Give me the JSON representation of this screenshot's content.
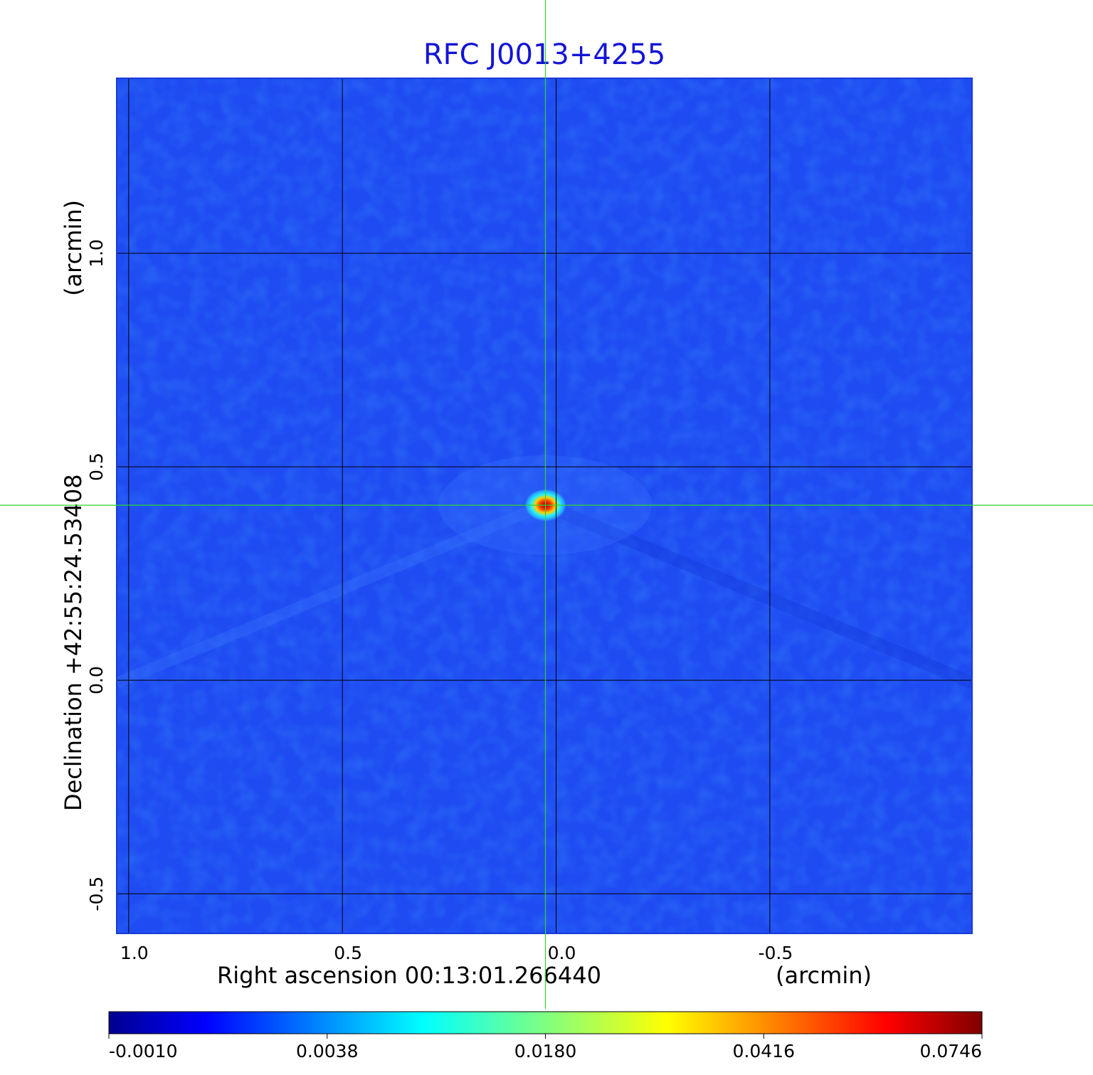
{
  "chart_data": {
    "type": "heatmap",
    "title": "RFC J0013+4255",
    "xlabel": "Right ascension  00:13:01.266440",
    "xlabel_unit": "(arcmin)",
    "ylabel": "Declination  +42:55:24.53408",
    "ylabel_unit": "(arcmin)",
    "x_ticks": [
      {
        "value": 1.0,
        "label": "1.0"
      },
      {
        "value": 0.5,
        "label": "0.5"
      },
      {
        "value": 0.0,
        "label": "0.0"
      },
      {
        "value": -0.5,
        "label": "-0.5"
      }
    ],
    "y_ticks": [
      {
        "value": 1.0,
        "label": "1.0"
      },
      {
        "value": 0.5,
        "label": "0.5"
      },
      {
        "value": 0.0,
        "label": "0.0"
      },
      {
        "value": -0.5,
        "label": "-0.5"
      }
    ],
    "xlim": [
      1.028,
      -0.973
    ],
    "ylim": [
      -0.593,
      1.41
    ],
    "grid": true,
    "crosshair": {
      "x": 0.025,
      "y": 0.41
    },
    "source_peak": {
      "x": 0.025,
      "y": 0.41,
      "value": 0.0746
    },
    "colorbar": {
      "labels": [
        "-0.0010",
        "0.0038",
        "0.0180",
        "0.0416",
        "0.0746"
      ],
      "min": -0.001,
      "max": 0.0746,
      "colormap": "jet"
    },
    "colors": {
      "background_field": "#1f4cf2",
      "grid": "#000000",
      "crosshair": "#2fd62f",
      "title": "#1414d6"
    }
  }
}
